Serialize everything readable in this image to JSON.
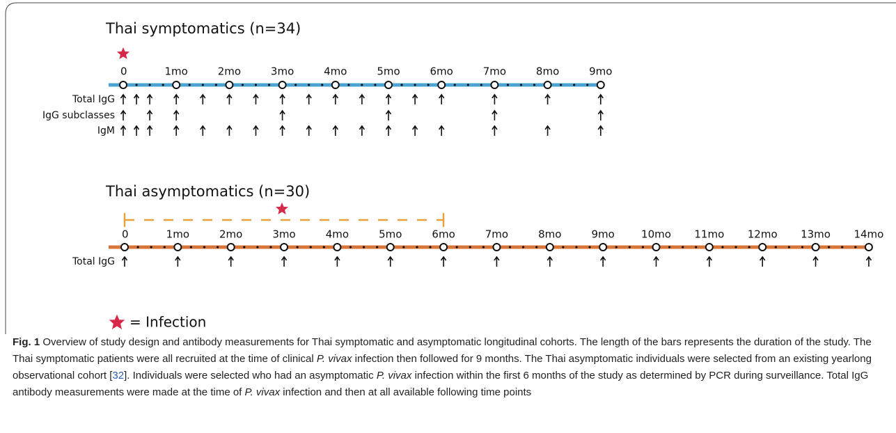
{
  "panels": [
    {
      "title": "Thai symptomatics (n=34)",
      "ticks": [
        "0",
        "1mo",
        "2mo",
        "3mo",
        "4mo",
        "5mo",
        "6mo",
        "7mo",
        "8mo",
        "9mo"
      ],
      "rows": [
        "Total IgG",
        "IgG subclasses",
        "IgM"
      ]
    },
    {
      "title": "Thai asymptomatics (n=30)",
      "ticks": [
        "0",
        "1mo",
        "2mo",
        "3mo",
        "4mo",
        "5mo",
        "6mo",
        "7mo",
        "8mo",
        "9mo",
        "10mo",
        "11mo",
        "12mo",
        "13mo",
        "14mo"
      ],
      "rows": [
        "Total IgG"
      ]
    }
  ],
  "legend": "= Infection",
  "caption": {
    "label": "Fig. 1",
    "parts": [
      " Overview of study design and antibody measurements for Thai symptomatic and asymptomatic longitudinal cohorts. The length of the bars represents the duration of the study. The Thai symptomatic patients were all recruited at the time of clinical ",
      "P. vivax",
      " infection then followed for 9 months. The Thai asymptomatic individuals were selected from an existing yearlong observational cohort [",
      "32",
      "]. Individuals were selected who had an asymptomatic ",
      "P. vivax",
      " infection within the first 6 months of the study as determined by PCR during surveillance. Total IgG antibody measurements were made at the time of ",
      "P. vivax",
      " infection and then at all available following time points"
    ]
  }
}
